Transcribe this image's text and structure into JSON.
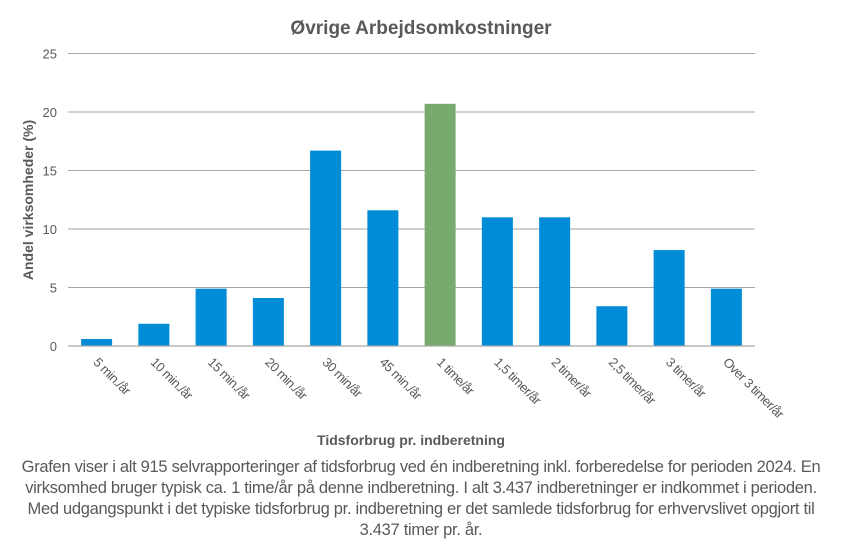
{
  "chart_data": {
    "type": "bar",
    "title": "Øvrige Arbejdsomkostninger",
    "xlabel": "Tidsforbrug pr. indberetning",
    "ylabel": "Andel virksomheder  (%)",
    "ylim": [
      0,
      25
    ],
    "yticks": [
      0,
      5,
      10,
      15,
      20,
      25
    ],
    "grid": true,
    "categories": [
      "5 min./år",
      "10 min./år",
      "15 min./år",
      "20 min./år",
      "30 min/år",
      "45 min./år",
      "1 time/år",
      "1,5 timer/år",
      "2 timer/år",
      "2,5 timer/år",
      "3 timer/år",
      "Over 3 timer/år"
    ],
    "values": [
      0.6,
      1.9,
      4.9,
      4.1,
      16.7,
      11.6,
      20.7,
      11.0,
      11.0,
      3.4,
      8.2,
      4.9
    ],
    "highlight_index": 6,
    "colors": {
      "bar": "#008CD6",
      "highlight": "#78AA6E",
      "grid": "#A6A6A6",
      "text": "#595959"
    }
  },
  "caption": "Grafen viser i alt 915 selvrapporteringer af tidsforbrug  ved én indberetning inkl. forberedelse for perioden 2024. En virksomhed bruger typisk ca. 1 time/år på denne indberetning. I alt 3.437 indberetninger er indkommet i perioden. Med udgangspunkt i det typiske tidsforbrug  pr. indberetning er det samlede tidsforbrug for erhvervslivet  opgjort til 3.437 timer pr. år."
}
